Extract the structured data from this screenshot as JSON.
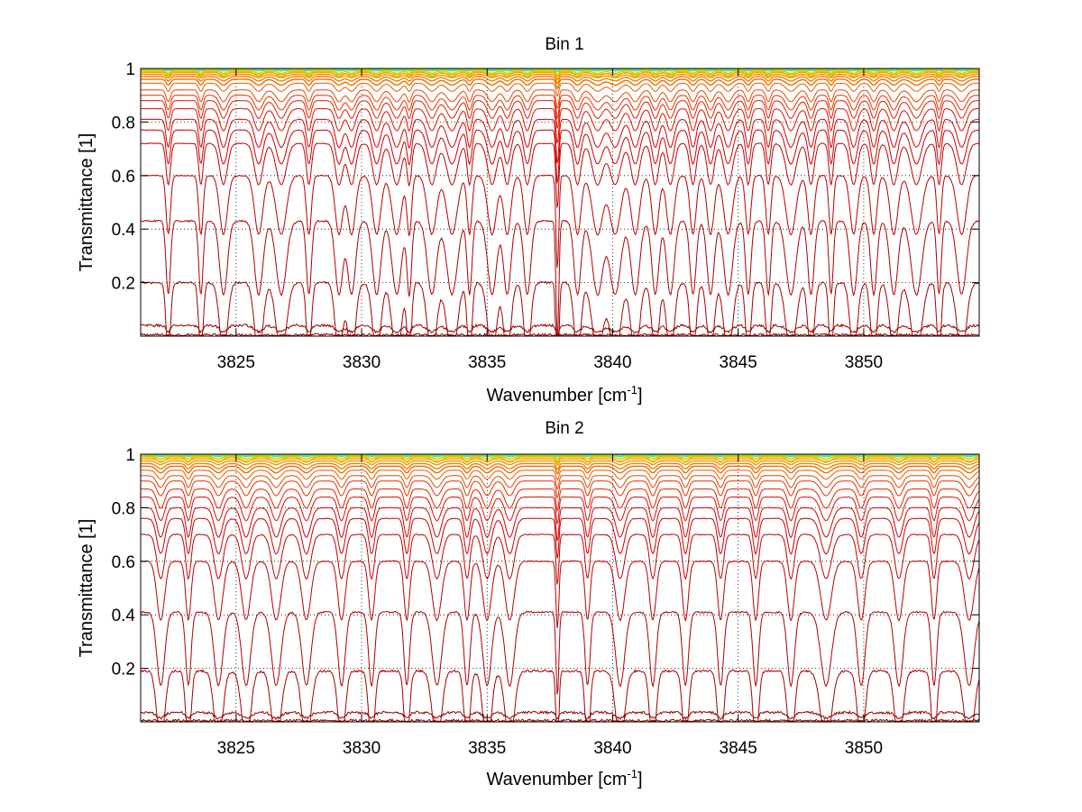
{
  "chart_data": [
    {
      "type": "line",
      "title": "Bin 1",
      "xlabel": "Wavenumber [cm",
      "xlabel_sup": "-1",
      "xlabel_suffix": "]",
      "ylabel": "Transmittance [1]",
      "xlim": [
        3821.2,
        3854.6
      ],
      "ylim": [
        0.0,
        1.0
      ],
      "xticks": [
        3825,
        3830,
        3835,
        3840,
        3845,
        3850
      ],
      "xtick_labels": [
        "3825",
        "3830",
        "3835",
        "3840",
        "3845",
        "3850"
      ],
      "yticks": [
        0.2,
        0.4,
        0.6,
        0.8,
        1.0
      ],
      "ytick_labels": [
        "0.2",
        "0.4",
        "0.6",
        "0.8",
        "1"
      ],
      "grid": true,
      "grid_style": "dotted",
      "legend": "none",
      "series_colors": [
        "#8b0000",
        "#960000",
        "#a10000",
        "#ac0000",
        "#b70000",
        "#c20000",
        "#cc0000",
        "#d40000",
        "#db1000",
        "#e02000",
        "#e43200",
        "#e84500",
        "#eb5800",
        "#ee6c00",
        "#f08000",
        "#f29400",
        "#f4a800",
        "#e0c000",
        "#c0d000",
        "#7ad84a",
        "#34c8a8"
      ],
      "series_baselines": [
        0.005,
        0.04,
        0.2,
        0.43,
        0.6,
        0.72,
        0.77,
        0.81,
        0.85,
        0.88,
        0.9,
        0.92,
        0.945,
        0.96,
        0.97,
        0.978,
        0.985,
        0.99,
        0.994,
        0.997,
        0.999
      ],
      "notable_absorption_line_cm-1": 3837.8
    },
    {
      "type": "line",
      "title": "Bin 2",
      "xlabel": "Wavenumber [cm",
      "xlabel_sup": "-1",
      "xlabel_suffix": "]",
      "ylabel": "Transmittance [1]",
      "xlim": [
        3821.2,
        3854.6
      ],
      "ylim": [
        0.0,
        1.0
      ],
      "xticks": [
        3825,
        3830,
        3835,
        3840,
        3845,
        3850
      ],
      "xtick_labels": [
        "3825",
        "3830",
        "3835",
        "3840",
        "3845",
        "3850"
      ],
      "yticks": [
        0.2,
        0.4,
        0.6,
        0.8,
        1.0
      ],
      "ytick_labels": [
        "0.2",
        "0.4",
        "0.6",
        "0.8",
        "1"
      ],
      "grid": true,
      "grid_style": "dotted",
      "legend": "none",
      "series_colors": [
        "#8b0000",
        "#960000",
        "#a10000",
        "#ac0000",
        "#b70000",
        "#c20000",
        "#cc0000",
        "#d40000",
        "#db1000",
        "#e02000",
        "#e43200",
        "#e84500",
        "#eb5800",
        "#ee6c00",
        "#f08000",
        "#f29400",
        "#f4a800",
        "#e0c000",
        "#c0d000",
        "#7ad84a",
        "#34c8a8"
      ],
      "series_baselines": [
        0.005,
        0.035,
        0.19,
        0.41,
        0.6,
        0.7,
        0.76,
        0.8,
        0.84,
        0.87,
        0.9,
        0.92,
        0.94,
        0.955,
        0.965,
        0.975,
        0.983,
        0.99,
        0.994,
        0.997,
        0.999
      ],
      "notable_absorption_line_cm-1": 3837.8
    }
  ]
}
